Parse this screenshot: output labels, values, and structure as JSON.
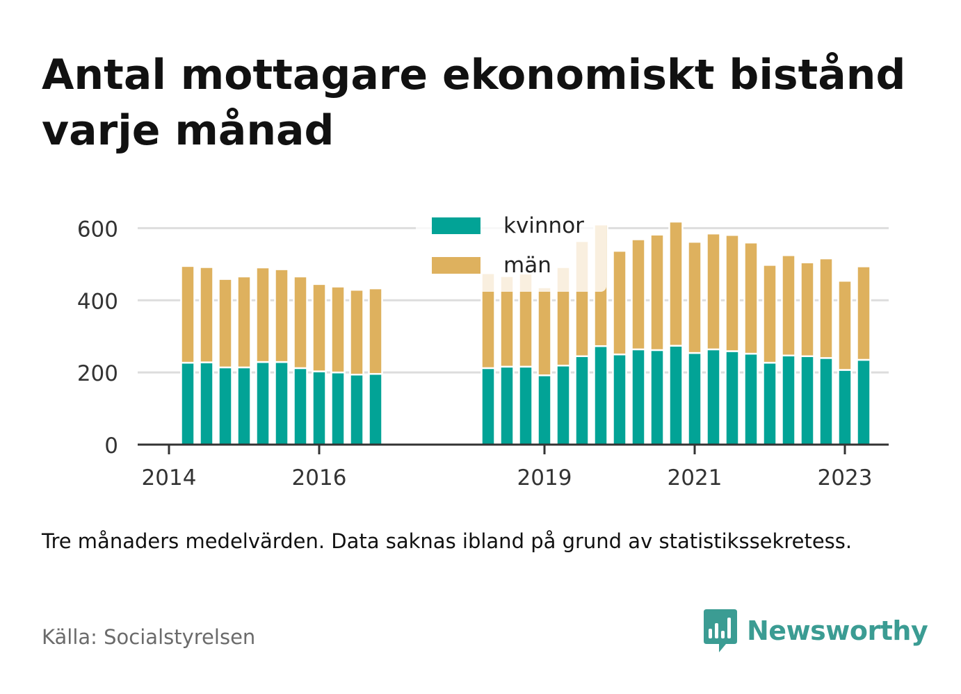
{
  "title": "Antal mottagare ekonomiskt bistånd varje månad",
  "note": "Tre månaders medelvärden. Data saknas ibland på grund av statistikssekretess.",
  "source": "Källa: Socialstyrelsen",
  "brand": "Newsworthy",
  "colors": {
    "kvinnor": "#02a396",
    "man": "#deb15e",
    "brand": "#3b9c93",
    "grid": "#dddddd",
    "axis": "#333333"
  },
  "chart_data": {
    "type": "bar",
    "stacked": true,
    "x_tick_labels": [
      "2014",
      "2016",
      "2019",
      "2021",
      "2023"
    ],
    "x_ticks": [
      "2014-01",
      "2016-01",
      "2019-01",
      "2021-01",
      "2023-01"
    ],
    "xlim": [
      "2013-08",
      "2023-08"
    ],
    "ylim": [
      0,
      620
    ],
    "y_ticks": [
      0,
      200,
      400,
      600
    ],
    "grid": true,
    "legend_position": "top-center",
    "categories": [
      "2014-04",
      "2014-07",
      "2014-10",
      "2015-01",
      "2015-04",
      "2015-07",
      "2015-10",
      "2016-01",
      "2016-04",
      "2016-07",
      "2016-10",
      "2018-04",
      "2018-07",
      "2018-10",
      "2019-01",
      "2019-04",
      "2019-07",
      "2019-10",
      "2020-01",
      "2020-04",
      "2020-07",
      "2020-10",
      "2021-01",
      "2021-04",
      "2021-07",
      "2021-10",
      "2022-01",
      "2022-04",
      "2022-07",
      "2022-10",
      "2023-01",
      "2023-04"
    ],
    "series": [
      {
        "name": "kvinnor",
        "values": [
          227,
          228,
          214,
          214,
          229,
          229,
          212,
          203,
          200,
          194,
          196,
          212,
          216,
          216,
          192,
          219,
          245,
          273,
          250,
          264,
          262,
          274,
          254,
          264,
          259,
          252,
          227,
          247,
          245,
          240,
          207,
          235
        ]
      },
      {
        "name": "män",
        "values": [
          268,
          264,
          245,
          252,
          262,
          257,
          254,
          242,
          238,
          235,
          237,
          263,
          251,
          258,
          244,
          273,
          319,
          337,
          287,
          305,
          320,
          344,
          308,
          321,
          322,
          308,
          271,
          278,
          260,
          276,
          247,
          259
        ]
      }
    ]
  }
}
